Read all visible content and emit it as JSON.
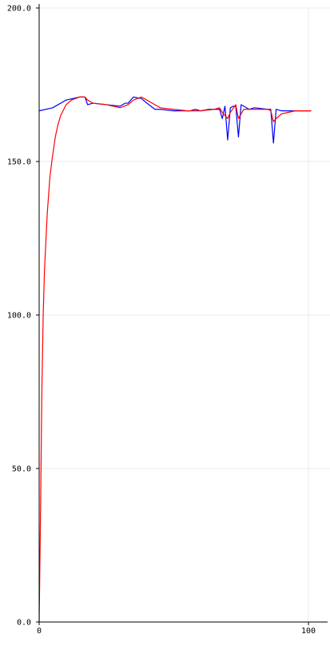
{
  "chart_data": {
    "type": "line",
    "title": "",
    "xlabel": "",
    "ylabel": "",
    "xlim": [
      0,
      108
    ],
    "ylim": [
      0,
      200
    ],
    "grid": true,
    "legend": "none",
    "y_ticks": [
      {
        "value": 0,
        "label": "0.0"
      },
      {
        "value": 50,
        "label": "50.0"
      },
      {
        "value": 100,
        "label": "100.0"
      },
      {
        "value": 150,
        "label": "150.0"
      },
      {
        "value": 200,
        "label": "200.0"
      }
    ],
    "x_ticks": [
      {
        "value": 0,
        "label": "0"
      },
      {
        "value": 100,
        "label": "100"
      }
    ],
    "series": [
      {
        "color": "#0000ff",
        "x": [
          0,
          5,
          10,
          15,
          17,
          18,
          20,
          25,
          30,
          32,
          33,
          35,
          38,
          40,
          43,
          45,
          50,
          55,
          56,
          58,
          60,
          63,
          65,
          67,
          68,
          69,
          70,
          71,
          72,
          73,
          74,
          75,
          76,
          78,
          80,
          85,
          86,
          87,
          88,
          90,
          95,
          101
        ],
        "y": [
          166.5,
          167.5,
          170,
          171,
          171,
          168.5,
          169,
          168.5,
          168,
          169,
          169,
          171,
          170.5,
          169,
          167,
          167,
          166.5,
          166.5,
          166.5,
          167,
          166.5,
          167,
          167,
          167,
          164,
          168,
          157,
          167.5,
          168,
          168,
          158,
          168.5,
          168,
          167,
          167.5,
          167,
          167,
          156,
          167,
          166.5,
          166.5,
          166.5
        ]
      },
      {
        "color": "#ff0000",
        "x": [
          0,
          0.5,
          1,
          1.5,
          2,
          3,
          4,
          5,
          6,
          7,
          8,
          10,
          12,
          15,
          17,
          18,
          20,
          25,
          30,
          33,
          35,
          38,
          40,
          43,
          45,
          50,
          55,
          60,
          65,
          67,
          68,
          70,
          71,
          73,
          74,
          75,
          76,
          78,
          80,
          85,
          86,
          87,
          88,
          90,
          95,
          101
        ],
        "y": [
          0,
          35,
          75,
          100,
          115,
          133,
          145,
          152,
          158,
          162,
          165,
          168.5,
          170,
          171,
          171,
          170,
          169,
          168.5,
          167.5,
          168.5,
          170,
          171,
          170,
          168.5,
          167.5,
          167,
          166.5,
          166.5,
          167,
          167.5,
          166,
          164,
          166,
          168.5,
          164,
          165.5,
          167,
          167,
          167,
          167,
          166.5,
          163,
          164,
          165.5,
          166.5,
          166.5
        ]
      }
    ]
  }
}
